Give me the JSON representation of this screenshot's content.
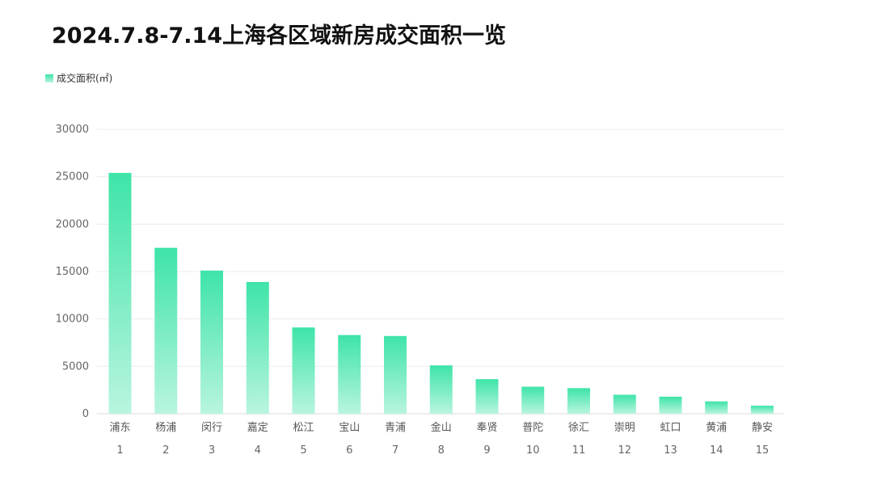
{
  "title": "2024.7.8-7.14上海各区域新房成交面积一览",
  "legend": {
    "label": "成交面积(㎡)"
  },
  "colors": {
    "bar_top": "#3ee4a8",
    "bar_bottom": "#b9f5de",
    "grid": "#ececec"
  },
  "chart_data": {
    "type": "bar",
    "title": "2024.7.8-7.14上海各区域新房成交面积一览",
    "categories": [
      "浦东",
      "杨浦",
      "闵行",
      "嘉定",
      "松江",
      "宝山",
      "青浦",
      "金山",
      "奉贤",
      "普陀",
      "徐汇",
      "崇明",
      "虹口",
      "黄浦",
      "静安"
    ],
    "ranks": [
      "1",
      "2",
      "3",
      "4",
      "5",
      "6",
      "7",
      "8",
      "9",
      "10",
      "11",
      "12",
      "13",
      "14",
      "15"
    ],
    "series": [
      {
        "name": "成交面积(㎡)",
        "values": [
          25400,
          17500,
          15100,
          13900,
          9100,
          8300,
          8200,
          5100,
          3650,
          2850,
          2700,
          2000,
          1800,
          1300,
          850
        ]
      }
    ],
    "yticks": [
      "0",
      "5000",
      "10000",
      "15000",
      "20000",
      "25000",
      "30000"
    ],
    "ylim": [
      0,
      30000
    ],
    "grid": true,
    "legend_position": "top-left"
  }
}
